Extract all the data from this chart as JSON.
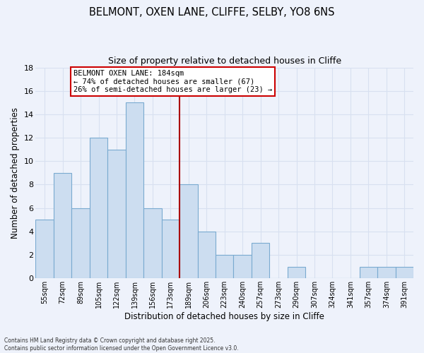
{
  "title": "BELMONT, OXEN LANE, CLIFFE, SELBY, YO8 6NS",
  "subtitle": "Size of property relative to detached houses in Cliffe",
  "xlabel": "Distribution of detached houses by size in Cliffe",
  "ylabel": "Number of detached properties",
  "categories": [
    "55sqm",
    "72sqm",
    "89sqm",
    "105sqm",
    "122sqm",
    "139sqm",
    "156sqm",
    "173sqm",
    "189sqm",
    "206sqm",
    "223sqm",
    "240sqm",
    "257sqm",
    "273sqm",
    "290sqm",
    "307sqm",
    "324sqm",
    "341sqm",
    "357sqm",
    "374sqm",
    "391sqm"
  ],
  "values": [
    5,
    9,
    6,
    12,
    11,
    15,
    6,
    5,
    8,
    4,
    2,
    2,
    3,
    0,
    1,
    0,
    0,
    0,
    1,
    1,
    1
  ],
  "bar_color": "#ccddf0",
  "bar_edge_color": "#7aaad0",
  "vline_x": 7.5,
  "vline_color": "#aa0000",
  "annotation_title": "BELMONT OXEN LANE: 184sqm",
  "annotation_line1": "← 74% of detached houses are smaller (67)",
  "annotation_line2": "26% of semi-detached houses are larger (23) →",
  "ylim": [
    0,
    18
  ],
  "yticks": [
    0,
    2,
    4,
    6,
    8,
    10,
    12,
    14,
    16,
    18
  ],
  "background_color": "#eef2fb",
  "grid_color": "#d8e0f0",
  "footer_line1": "Contains HM Land Registry data © Crown copyright and database right 2025.",
  "footer_line2": "Contains public sector information licensed under the Open Government Licence v3.0."
}
